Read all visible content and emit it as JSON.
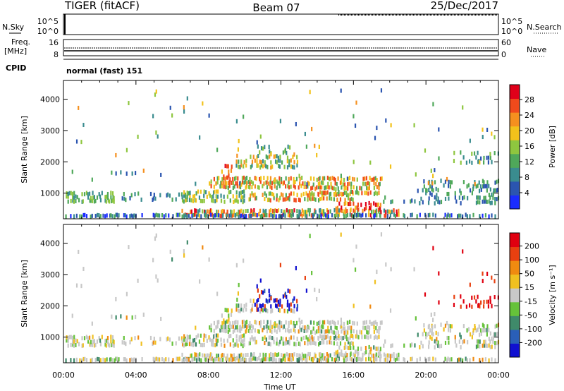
{
  "header": {
    "station": "TIGER (fitACF)",
    "beam": "Beam 07",
    "date": "25/Dec/2017"
  },
  "top_panels": {
    "nsky_label": "N.Sky",
    "nsearch_label": "N.Search",
    "freq_label": "Freq.",
    "freq_unit": "[MHz]",
    "nave_label": "Nave",
    "cpid_label": "CPID",
    "cpid_text": "normal (fast) 151",
    "noise_ticks": [
      "10^5",
      "10^0"
    ],
    "freq_ticks": [
      "16",
      "8"
    ],
    "nave_ticks": [
      "60",
      "0"
    ]
  },
  "chart_data": [
    {
      "type": "heatmap",
      "title": "",
      "xlabel": "",
      "ylabel": "Slant Range [km]",
      "x_ticks": [
        "00:00",
        "04:00",
        "08:00",
        "12:00",
        "16:00",
        "20:00",
        "00:00"
      ],
      "x_range_hours": [
        0,
        24
      ],
      "y_range_km": [
        180,
        4600
      ],
      "y_ticks": [
        1000,
        2000,
        3000,
        4000
      ],
      "colorbar": {
        "label": "Power [dB]",
        "ticks": [
          "28",
          "24",
          "20",
          "16",
          "12",
          "8",
          "4"
        ],
        "range": [
          0,
          30
        ]
      }
    },
    {
      "type": "heatmap",
      "title": "",
      "xlabel": "Time UT",
      "ylabel": "Slant Range [km]",
      "x_ticks": [
        "00:00",
        "04:00",
        "08:00",
        "12:00",
        "16:00",
        "20:00",
        "00:00"
      ],
      "x_range_hours": [
        0,
        24
      ],
      "y_range_km": [
        180,
        4600
      ],
      "y_ticks": [
        1000,
        2000,
        3000,
        4000
      ],
      "colorbar": {
        "label": "Velocity [m s⁻¹]",
        "ticks": [
          "200",
          "100",
          "50",
          "15",
          "-15",
          "-50",
          "-100",
          "-200"
        ],
        "range": [
          -250,
          250
        ]
      }
    }
  ],
  "colors": {
    "power_scale": [
      "#1a2cff",
      "#2b55b0",
      "#3a8c8f",
      "#4fa85a",
      "#8ec63f",
      "#f2c21b",
      "#f5901f",
      "#f04a1c",
      "#e0001a"
    ],
    "velocity_scale": [
      "#1010d0",
      "#2a5fb8",
      "#3f8a6a",
      "#66c23a",
      "#c8c8c8",
      "#f0c020",
      "#f08a10",
      "#e84010",
      "#e00010"
    ]
  }
}
